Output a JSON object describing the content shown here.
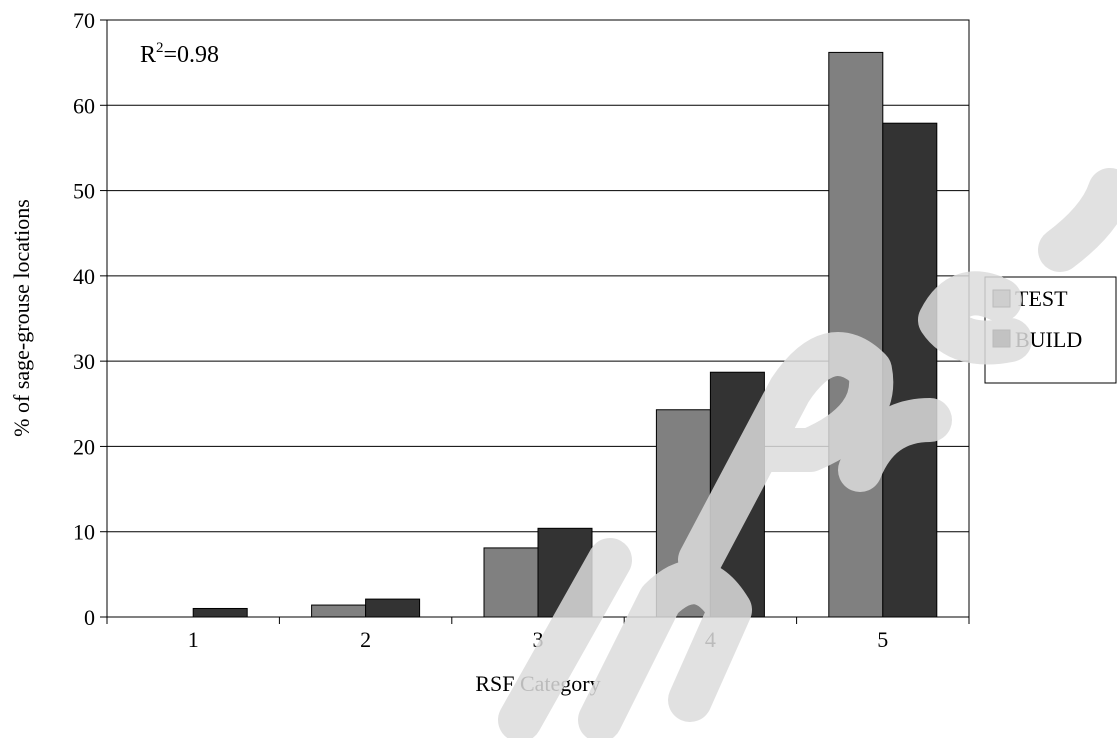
{
  "chart_data": {
    "type": "bar",
    "title": "",
    "xlabel": "RSF Category",
    "ylabel": "% of sage-grouse locations",
    "categories": [
      "1",
      "2",
      "3",
      "4",
      "5"
    ],
    "series": [
      {
        "name": "TEST",
        "values": [
          0,
          1.4,
          8.1,
          24.3,
          66.2
        ],
        "color": "#808080"
      },
      {
        "name": "BUILD",
        "values": [
          1.0,
          2.1,
          10.4,
          28.7,
          57.9
        ],
        "color": "#333333"
      }
    ],
    "ylim": [
      0,
      70
    ],
    "yticks": [
      "0",
      "10",
      "20",
      "30",
      "40",
      "50",
      "60",
      "70"
    ],
    "grid": true,
    "legend": "right",
    "annotation": {
      "base": "R",
      "sup": "2",
      "rest": "=0.98"
    }
  }
}
